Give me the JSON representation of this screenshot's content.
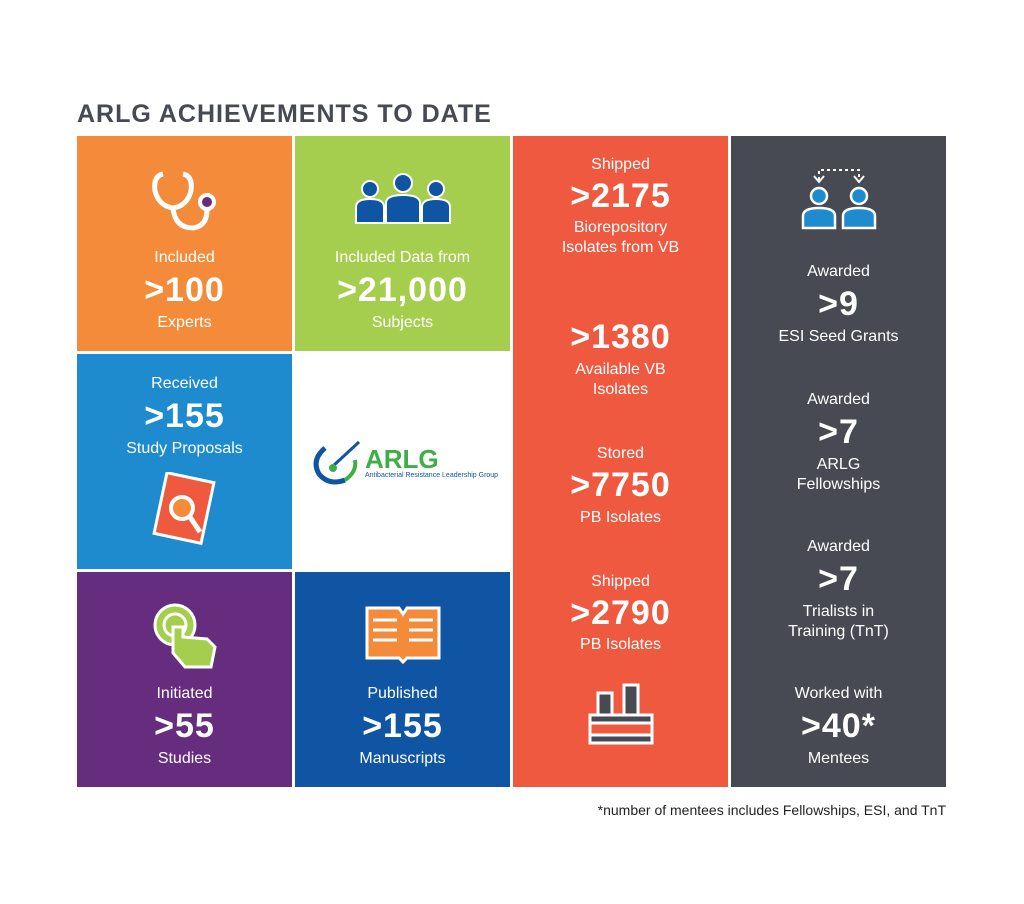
{
  "title": "ARLG ACHIEVEMENTS TO DATE",
  "colors": {
    "orange": "#F48B3A",
    "green": "#A6CE4E",
    "blue": "#1E8BCF",
    "purple": "#662D7E",
    "navy": "#0F55A3",
    "red": "#EF5940",
    "gray": "#474A53"
  },
  "tiles": {
    "experts": {
      "top": "Included",
      "value": ">100",
      "bottom": "Experts",
      "icon": "stethoscope-icon"
    },
    "subjects": {
      "top": "Included Data from",
      "value": ">21,000",
      "bottom": "Subjects",
      "icon": "group-icon"
    },
    "proposals": {
      "top": "Received",
      "value": ">155",
      "bottom": "Study Proposals",
      "icon": "document-search-icon"
    },
    "logo": {
      "name": "ARLG",
      "subtitle": "Antibacterial Resistance Leadership Group"
    },
    "studies": {
      "top": "Initiated",
      "value": ">55",
      "bottom": "Studies",
      "icon": "hand-pointer-icon"
    },
    "manuscripts": {
      "top": "Published",
      "value": ">155",
      "bottom": "Manuscripts",
      "icon": "open-book-icon"
    }
  },
  "red_column": [
    {
      "top": "Shipped",
      "value": ">2175",
      "bottom": "Biorepository Isolates from VB"
    },
    {
      "top": "",
      "value": ">1380",
      "bottom": "Available VB Isolates"
    },
    {
      "top": "Stored",
      "value": ">7750",
      "bottom": "PB Isolates"
    },
    {
      "top": "Shipped",
      "value": ">2790",
      "bottom": "PB Isolates"
    }
  ],
  "gray_column": [
    {
      "top": "Awarded",
      "value": ">9",
      "bottom": "ESI Seed Grants"
    },
    {
      "top": "Awarded",
      "value": ">7",
      "bottom": "ARLG Fellowships"
    },
    {
      "top": "Awarded",
      "value": ">7",
      "bottom": "Trialists in Training (TnT)"
    },
    {
      "top": "Worked with",
      "value": ">40*",
      "bottom": "Mentees"
    }
  ],
  "footnote": "*number of mentees includes Fellowships, ESI, and TnT"
}
